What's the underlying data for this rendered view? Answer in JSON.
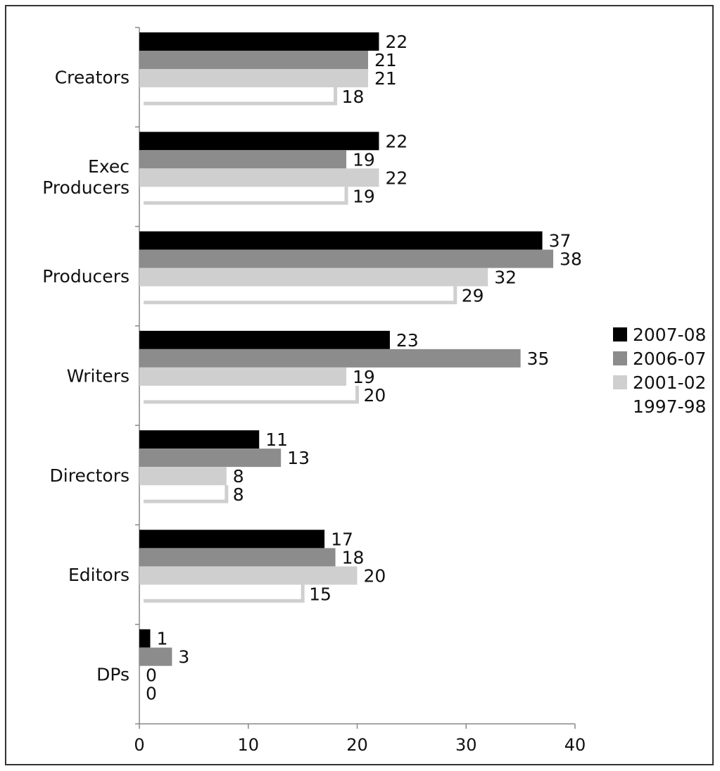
{
  "chart_data": {
    "type": "bar",
    "orientation": "horizontal",
    "categories": [
      "Creators",
      "Exec Producers",
      "Producers",
      "Writers",
      "Directors",
      "Editors",
      "DPs"
    ],
    "series": [
      {
        "name": "2007-08",
        "color": "#000000",
        "values": [
          22,
          22,
          37,
          23,
          11,
          17,
          1
        ]
      },
      {
        "name": "2006-07",
        "color": "#8c8c8c",
        "values": [
          21,
          19,
          38,
          35,
          13,
          18,
          3
        ]
      },
      {
        "name": "2001-02",
        "color": "#cfcfcf",
        "values": [
          21,
          22,
          32,
          19,
          8,
          20,
          0
        ]
      },
      {
        "name": "1997-98",
        "color": "#cfcfcf",
        "style": "outline",
        "values": [
          18,
          19,
          29,
          20,
          8,
          15,
          0
        ]
      }
    ],
    "xlim": [
      0,
      40
    ],
    "xticks": [
      "0",
      "10",
      "20",
      "30",
      "40"
    ],
    "title": "",
    "xlabel": "",
    "ylabel": "",
    "grid": false,
    "legend_position": "right"
  }
}
